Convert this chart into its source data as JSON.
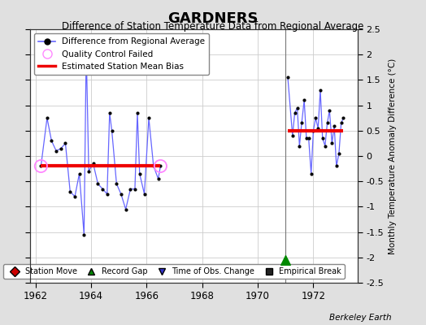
{
  "title": "GARDNERS",
  "subtitle": "Difference of Station Temperature Data from Regional Average",
  "ylabel": "Monthly Temperature Anomaly Difference (°C)",
  "credit": "Berkeley Earth",
  "xlim": [
    1961.8,
    1973.6
  ],
  "ylim": [
    -2.5,
    2.5
  ],
  "xticks": [
    1962,
    1964,
    1966,
    1968,
    1970,
    1972
  ],
  "yticks": [
    -2.5,
    -2.0,
    -1.5,
    -1.0,
    -0.5,
    0.0,
    0.5,
    1.0,
    1.5,
    2.0,
    2.5
  ],
  "bg_color": "#e0e0e0",
  "plot_bg_color": "#ffffff",
  "grid_color": "#cccccc",
  "line_color": "#6666ff",
  "marker_color": "#000000",
  "bias_color": "#ee0000",
  "segment1_bias": -0.2,
  "segment2_bias": 0.5,
  "vertical_line_x": 1971.0,
  "record_gap_x": 1971.0,
  "record_gap_y": -2.05,
  "qc_fail_points": [
    [
      1962.2,
      -0.2
    ],
    [
      1966.5,
      -0.2
    ]
  ],
  "segment1_data": [
    [
      1962.2,
      -0.2
    ],
    [
      1962.42,
      0.75
    ],
    [
      1962.58,
      0.3
    ],
    [
      1962.75,
      0.1
    ],
    [
      1962.92,
      0.15
    ],
    [
      1963.08,
      0.25
    ],
    [
      1963.25,
      -0.7
    ],
    [
      1963.42,
      -0.8
    ],
    [
      1963.58,
      -0.35
    ],
    [
      1963.75,
      -1.55
    ],
    [
      1963.83,
      2.1
    ],
    [
      1963.92,
      -0.3
    ],
    [
      1964.08,
      -0.15
    ],
    [
      1964.25,
      -0.55
    ],
    [
      1964.42,
      -0.65
    ],
    [
      1964.58,
      -0.75
    ],
    [
      1964.67,
      0.85
    ],
    [
      1964.75,
      0.5
    ],
    [
      1964.92,
      -0.55
    ],
    [
      1965.08,
      -0.75
    ],
    [
      1965.25,
      -1.05
    ],
    [
      1965.42,
      -0.65
    ],
    [
      1965.58,
      -0.65
    ],
    [
      1965.67,
      0.85
    ],
    [
      1965.75,
      -0.35
    ],
    [
      1965.92,
      -0.75
    ],
    [
      1966.08,
      0.75
    ],
    [
      1966.25,
      -0.2
    ],
    [
      1966.42,
      -0.45
    ],
    [
      1966.5,
      -0.2
    ]
  ],
  "segment2_data": [
    [
      1971.08,
      1.55
    ],
    [
      1971.25,
      0.4
    ],
    [
      1971.33,
      0.85
    ],
    [
      1971.42,
      0.95
    ],
    [
      1971.5,
      0.2
    ],
    [
      1971.58,
      0.65
    ],
    [
      1971.67,
      1.1
    ],
    [
      1971.75,
      0.35
    ],
    [
      1971.83,
      0.35
    ],
    [
      1971.92,
      -0.35
    ],
    [
      1972.0,
      0.5
    ],
    [
      1972.08,
      0.75
    ],
    [
      1972.17,
      0.55
    ],
    [
      1972.25,
      1.3
    ],
    [
      1972.33,
      0.35
    ],
    [
      1972.42,
      0.2
    ],
    [
      1972.5,
      0.65
    ],
    [
      1972.58,
      0.9
    ],
    [
      1972.67,
      0.25
    ],
    [
      1972.75,
      0.6
    ],
    [
      1972.83,
      -0.2
    ],
    [
      1972.92,
      0.05
    ],
    [
      1973.0,
      0.65
    ],
    [
      1973.08,
      0.75
    ]
  ]
}
